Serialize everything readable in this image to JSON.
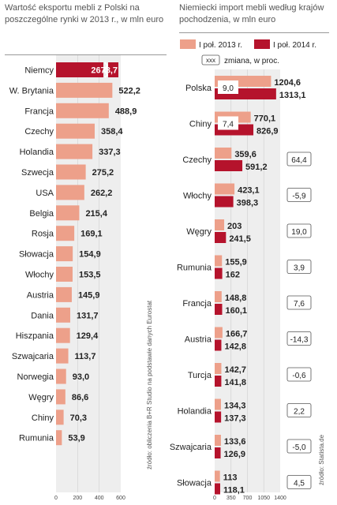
{
  "chart_data": [
    {
      "type": "bar",
      "title": "Wartość eksportu mebli z Polski na poszczególne rynki w 2013 r., w mln euro",
      "categories": [
        "Niemcy",
        "W. Brytania",
        "Francja",
        "Czechy",
        "Holandia",
        "Szwecja",
        "USA",
        "Belgia",
        "Rosja",
        "Słowacja",
        "Włochy",
        "Austria",
        "Dania",
        "Hiszpania",
        "Szwajcaria",
        "Norwegia",
        "Węgry",
        "Chiny",
        "Rumunia"
      ],
      "values": [
        2678.7,
        522.2,
        488.9,
        358.4,
        337.3,
        275.2,
        262.2,
        215.4,
        169.1,
        154.9,
        153.5,
        145.9,
        131.7,
        129.4,
        113.7,
        93.0,
        86.6,
        70.3,
        53.9
      ],
      "value_labels": [
        "2678,7",
        "522,2",
        "488,9",
        "358,4",
        "337,3",
        "275,2",
        "262,2",
        "215,4",
        "169,1",
        "154,9",
        "153,5",
        "145,9",
        "131,7",
        "129,4",
        "113,7",
        "93,0",
        "86,6",
        "70,3",
        "53,9"
      ],
      "xlim": [
        0,
        600
      ],
      "xticks": [
        "0",
        "200",
        "400",
        "600"
      ],
      "axis_break": true,
      "highlight_category": "Niemcy",
      "source": "źródło: obliczenia B+R Studio na podstawie danych Eurostat"
    },
    {
      "type": "bar",
      "title": "Niemiecki import mebli według krajów pochodzenia, w mln euro",
      "categories": [
        "Polska",
        "Chiny",
        "Czechy",
        "Włochy",
        "Węgry",
        "Rumunia",
        "Francja",
        "Austria",
        "Turcja",
        "Holandia",
        "Szwajcaria",
        "Słowacja"
      ],
      "series": [
        {
          "name": "I poł. 2013 r.",
          "values": [
            1204.6,
            770.1,
            359.6,
            423.1,
            203,
            155.9,
            148.8,
            166.7,
            142.7,
            134.3,
            133.6,
            113
          ],
          "labels": [
            "1204,6",
            "770,1",
            "359,6",
            "423,1",
            "203",
            "155,9",
            "148,8",
            "166,7",
            "142,7",
            "134,3",
            "133,6",
            "113"
          ]
        },
        {
          "name": "I poł. 2014 r.",
          "values": [
            1313.1,
            826.9,
            591.2,
            398.3,
            241.5,
            162,
            160.1,
            142.8,
            141.8,
            137.3,
            126.9,
            118.1
          ],
          "labels": [
            "1313,1",
            "826,9",
            "591,2",
            "398,3",
            "241,5",
            "162",
            "160,1",
            "142,8",
            "141,8",
            "137,3",
            "126,9",
            "118,1"
          ]
        }
      ],
      "change_legend": "zmiana, w proc.",
      "change_legend_symbol": "xxx",
      "change": [
        "9,0",
        "7,4",
        "64,4",
        "-5,9",
        "19,0",
        "3,9",
        "7,6",
        "-14,3",
        "-0,6",
        "2,2",
        "-5,0",
        "4,5"
      ],
      "xlim": [
        0,
        1400
      ],
      "xticks": [
        "0",
        "350",
        "700",
        "1050",
        "1400"
      ],
      "source": "źródło: Statista.de"
    }
  ],
  "colors": {
    "light": "#eda08a",
    "dark": "#b5132c",
    "panel": "#eeeeee",
    "text": "#222222",
    "grid": "#cfcfcf"
  }
}
